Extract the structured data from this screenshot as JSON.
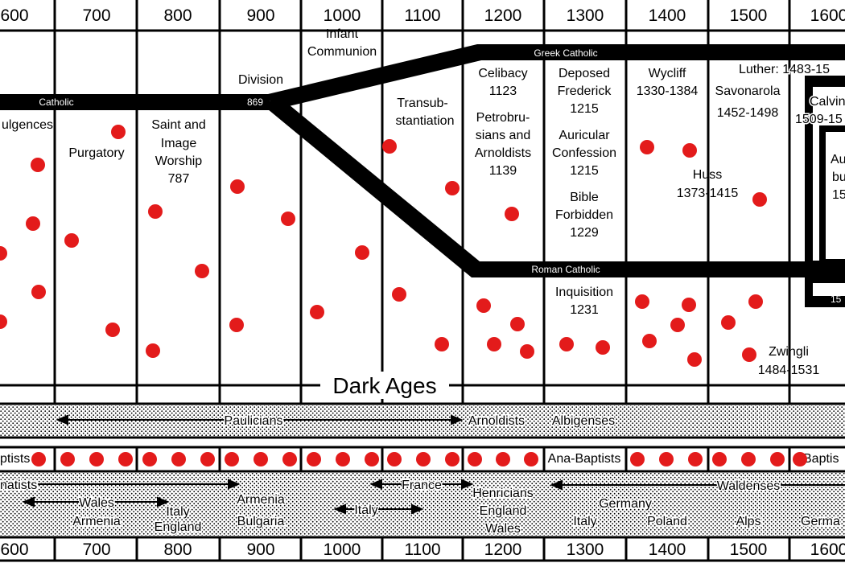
{
  "centuries": [
    "600",
    "700",
    "800",
    "900",
    "1000",
    "1100",
    "1200",
    "1300",
    "1400",
    "1500",
    "1600"
  ],
  "centuries_bottom": [
    "600",
    "700",
    "800",
    "900",
    "1000",
    "1100",
    "1200",
    "1300",
    "1400",
    "1500",
    "1600"
  ],
  "bands": {
    "catholic": "Catholic",
    "year_869": "869",
    "greek": "Greek Catholic",
    "roman": "Roman Catholic",
    "year_15": "15"
  },
  "events": {
    "indulgences": "ulgences",
    "purgatory": "Purgatory",
    "saint1": "Saint and",
    "saint2": "Image",
    "saint3": "Worship",
    "saint4": "787",
    "division": "Division",
    "infant1": "Infant",
    "infant2": "Communion",
    "transub1": "Transub-",
    "transub2": "stantiation",
    "celibacy1": "Celibacy",
    "celibacy2": "1123",
    "petro1": "Petrobru-",
    "petro2": "sians and",
    "petro3": "Arnoldists",
    "petro4": "1139",
    "deposed1": "Deposed",
    "deposed2": "Frederick",
    "deposed3": "1215",
    "auricular1": "Auricular",
    "auricular2": "Confession",
    "auricular3": "1215",
    "bible1": "Bible",
    "bible2": "Forbidden",
    "bible3": "1229",
    "inquisition1": "Inquisition",
    "inquisition2": "1231",
    "wycliff1": "Wycliff",
    "wycliff2": "1330-1384",
    "savonarola1": "Savonarola",
    "savonarola2": "1452-1498",
    "huss1": "Huss",
    "huss2": "1373-1415",
    "luther": "Luther: 1483-15",
    "calvin1": "Calvin",
    "calvin2": "1509-15",
    "au1": "Au",
    "au2": "bu",
    "au3": "15",
    "zwingli1": "Zwingli",
    "zwingli2": "1484-1531"
  },
  "dark_ages": "Dark Ages",
  "rows": {
    "paulicians": "Paulicians",
    "arnoldists": "Arnoldists",
    "albigenses": "Albigenses",
    "ptists": "ptists",
    "anabaptists": "Ana-Baptists",
    "baptis": "Baptis",
    "donatists": "natists",
    "wales": "Wales",
    "armenia1": "Armenia",
    "italy1": "Italy",
    "england1": "England",
    "armenia2": "Armenia",
    "bulgaria": "Bulgaria",
    "france": "France",
    "italy2": "Italy",
    "henricians": "Henricians",
    "england2": "England",
    "wales2": "Wales",
    "waldenses": "Waldenses",
    "germany1": "Germany",
    "italy3": "Italy",
    "poland": "Poland",
    "alps": "Alps",
    "germa": "Germa"
  },
  "colors": {
    "dot": "#e31b1b",
    "ink": "#000000",
    "paper": "#ffffff"
  }
}
